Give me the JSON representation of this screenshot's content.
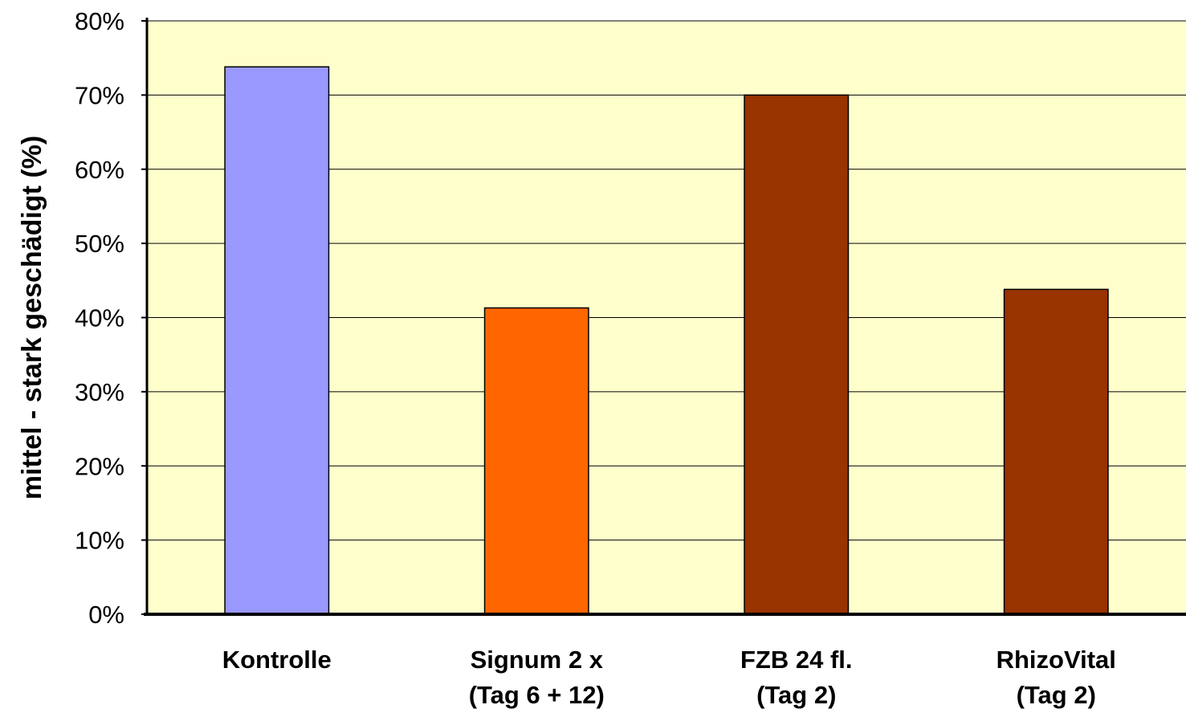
{
  "chart_data": {
    "type": "bar",
    "title": "",
    "xlabel": "",
    "ylabel": "mittel - stark geschädigt (%)",
    "ylim": [
      0,
      80
    ],
    "y_ticks": [
      "0%",
      "10%",
      "20%",
      "30%",
      "40%",
      "50%",
      "60%",
      "70%",
      "80%"
    ],
    "y_tick_values": [
      0,
      10,
      20,
      30,
      40,
      50,
      60,
      70,
      80
    ],
    "categories": [
      [
        "Kontrolle"
      ],
      [
        "Signum 2 x",
        "(Tag 6 + 12)"
      ],
      [
        "FZB 24 fl.",
        "(Tag 2)"
      ],
      [
        "RhizoVital",
        "(Tag 2)"
      ]
    ],
    "values": [
      73.8,
      41.3,
      70.0,
      43.8
    ],
    "bar_colors": [
      "#9999ff",
      "#ff6600",
      "#993300",
      "#993300"
    ],
    "plot_background": "#ffffcc",
    "grid": true,
    "legend": "none"
  }
}
